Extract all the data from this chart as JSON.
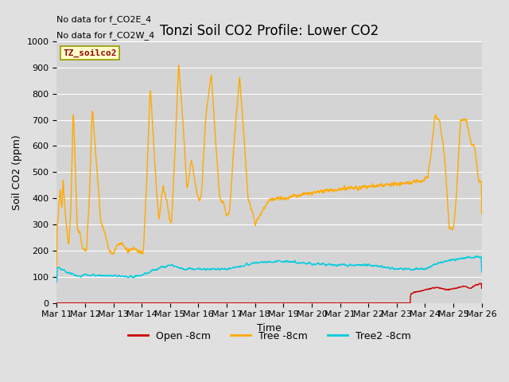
{
  "title": "Tonzi Soil CO2 Profile: Lower CO2",
  "xlabel": "Time",
  "ylabel": "Soil CO2 (ppm)",
  "ylim": [
    0,
    1000
  ],
  "annotation_lines": [
    "No data for f_CO2E_4",
    "No data for f_CO2W_4"
  ],
  "dataset_label": "TZ_soilco2",
  "x_tick_labels": [
    "Mar 11",
    "Mar 12",
    "Mar 13",
    "Mar 14",
    "Mar 15",
    "Mar 16",
    "Mar 17",
    "Mar 18",
    "Mar 19",
    "Mar 20",
    "Mar 21",
    "Mar 22",
    "Mar 23",
    "Mar 24",
    "Mar 25",
    "Mar 26"
  ],
  "legend_entries": [
    {
      "label": "Open -8cm",
      "color": "#cc0000"
    },
    {
      "label": "Tree -8cm",
      "color": "#ffaa00"
    },
    {
      "label": "Tree2 -8cm",
      "color": "#00ccdd"
    }
  ],
  "background_color": "#e0e0e0",
  "plot_bg_color": "#d4d4d4",
  "grid_color": "#ffffff",
  "title_fontsize": 12,
  "axis_label_fontsize": 9,
  "tick_label_fontsize": 8
}
